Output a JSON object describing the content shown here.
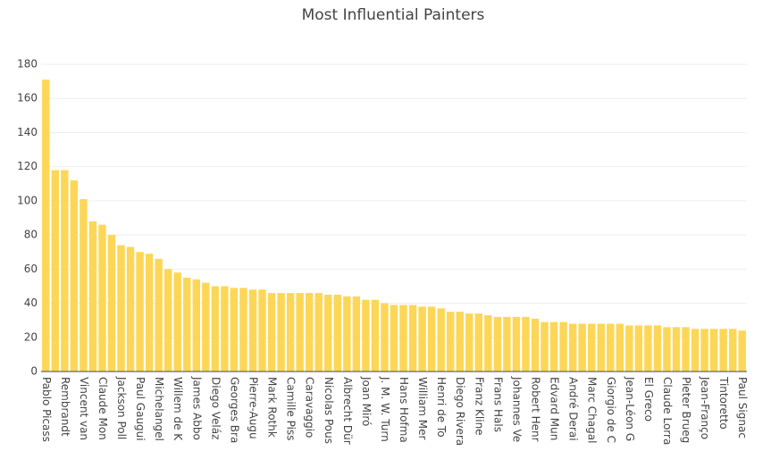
{
  "chart_data": {
    "type": "bar",
    "title": "Most Influential Painters",
    "categories": [
      "Pablo Picass",
      null,
      "Rembrandt",
      null,
      "Vincent van",
      null,
      "Claude Mon",
      null,
      "Jackson Poll",
      null,
      "Paul Gaugui",
      null,
      "Michelangel",
      null,
      "Willem de K",
      null,
      "James Abbo",
      null,
      "Diego Veláz",
      null,
      "Georges Bra",
      null,
      "Pierre-Augu",
      null,
      "Mark Rothk",
      null,
      "Camille Piss",
      null,
      "Caravaggio",
      null,
      "Nicolas Pous",
      null,
      "Albrecht Dür",
      null,
      "Joan Miró",
      null,
      "J. M. W. Turn",
      null,
      "Hans Hofma",
      null,
      "William Mer",
      null,
      "Henri de To",
      null,
      "Diego Rivera",
      null,
      "Franz Kline",
      null,
      "Frans Hals",
      null,
      "Johannes Ve",
      null,
      "Robert Henr",
      null,
      "Edvard Mun",
      null,
      "André Derai",
      null,
      "Marc Chagal",
      null,
      "Giorgio de C",
      null,
      "Jean-Léon G",
      null,
      "El Greco",
      null,
      "Claude Lorra",
      null,
      "Pieter Brueg",
      null,
      "Jean-Franço",
      null,
      "Tintoretto",
      null,
      "Paul Signac"
    ],
    "values": [
      171,
      118,
      118,
      112,
      101,
      88,
      86,
      80,
      74,
      73,
      70,
      69,
      66,
      60,
      58,
      55,
      54,
      52,
      50,
      50,
      49,
      49,
      48,
      48,
      46,
      46,
      46,
      46,
      46,
      46,
      45,
      45,
      44,
      44,
      42,
      42,
      40,
      39,
      39,
      39,
      38,
      38,
      37,
      35,
      35,
      34,
      34,
      33,
      32,
      32,
      32,
      32,
      31,
      29,
      29,
      29,
      28,
      28,
      28,
      28,
      28,
      28,
      27,
      27,
      27,
      27,
      26,
      26,
      26,
      25,
      25,
      25,
      25,
      25,
      24
    ],
    "color": "#fcd757",
    "ylim": [
      0,
      180
    ],
    "yticks": [
      0,
      20,
      40,
      60,
      80,
      100,
      120,
      140,
      160,
      180
    ],
    "grid": true
  }
}
